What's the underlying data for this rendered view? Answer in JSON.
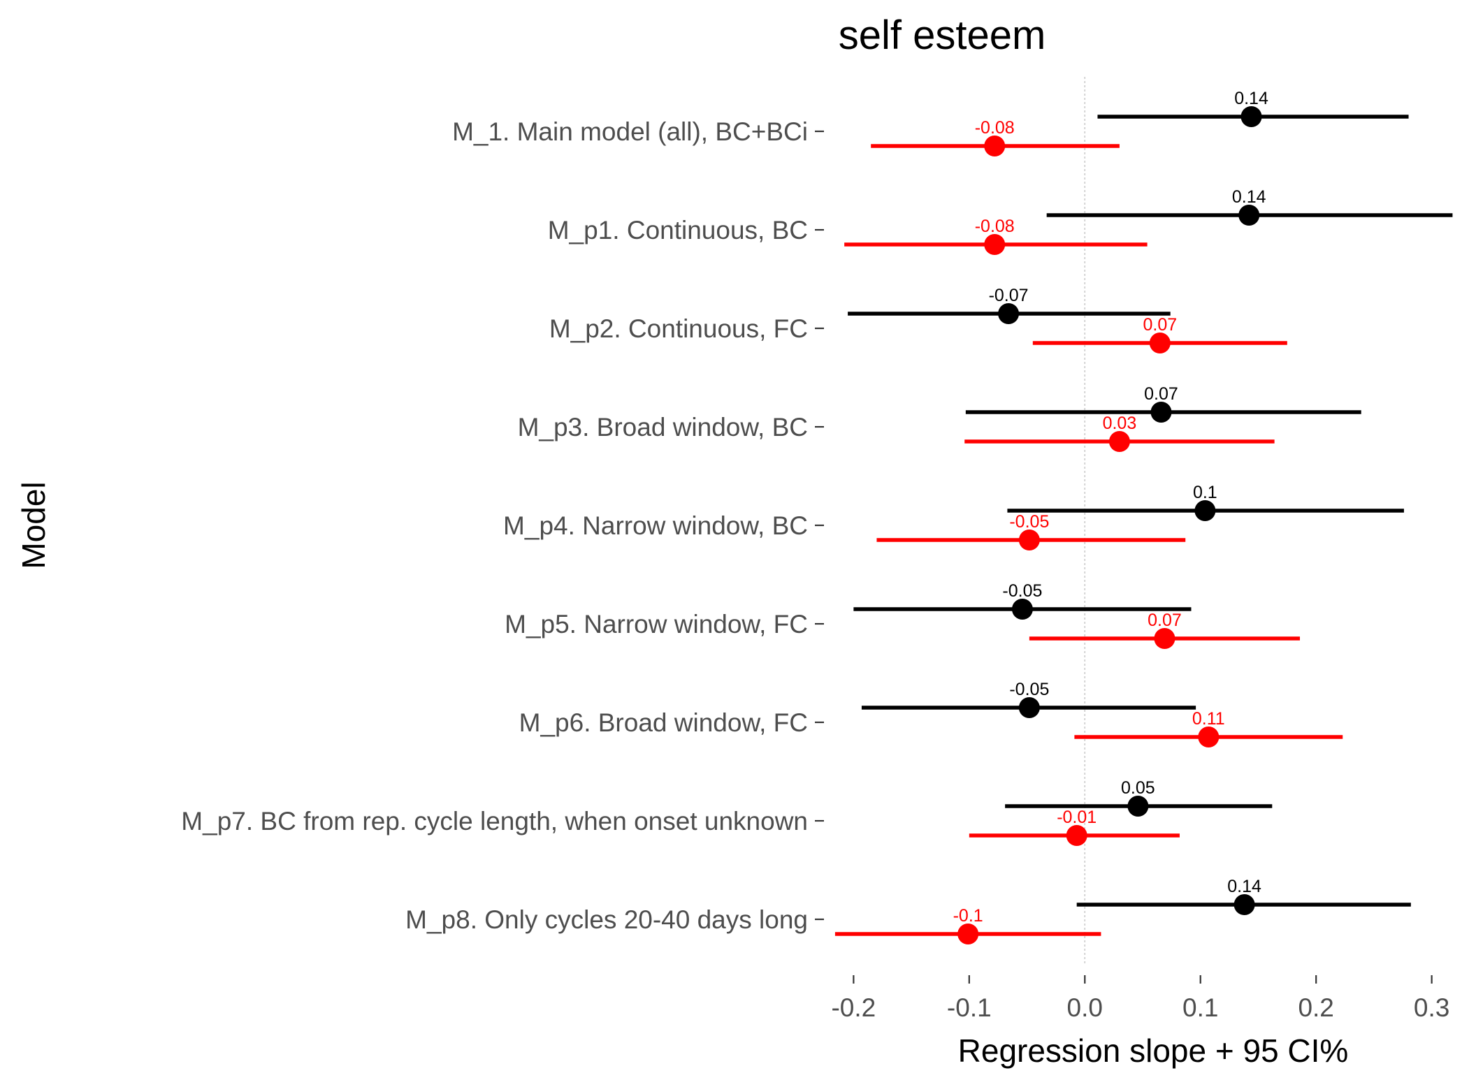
{
  "chart_data": {
    "type": "forest",
    "title": "self esteem",
    "xlabel": "Regression slope + 95 CI%",
    "ylabel": "Model",
    "xlim": [
      -0.225,
      0.325
    ],
    "x_ticks": [
      -0.2,
      -0.1,
      0.0,
      0.1,
      0.2,
      0.3
    ],
    "x_tick_labels": [
      "-0.2",
      "-0.1",
      "0.0",
      "0.1",
      "0.2",
      "0.3"
    ],
    "reference_line": 0,
    "grid": false,
    "categories": [
      "M_1. Main model (all), BC+BCi",
      "M_p1. Continuous, BC",
      "M_p2. Continuous, FC",
      "M_p3. Broad window, BC",
      "M_p4. Narrow window, BC",
      "M_p5. Narrow window, FC",
      "M_p6. Broad window, FC",
      "M_p7. BC from rep. cycle length, when onset unknown",
      "M_p8. Only cycles 20-40 days long"
    ],
    "series": [
      {
        "color": "#000000",
        "estimates": [
          0.144,
          0.142,
          -0.066,
          0.066,
          0.104,
          -0.054,
          -0.048,
          0.046,
          0.138
        ],
        "lower": [
          0.011,
          -0.033,
          -0.205,
          -0.103,
          -0.067,
          -0.2,
          -0.193,
          -0.069,
          -0.007
        ],
        "upper": [
          0.28,
          0.318,
          0.074,
          0.239,
          0.276,
          0.092,
          0.096,
          0.162,
          0.282
        ],
        "labels": [
          "0.14",
          "0.14",
          "-0.07",
          "0.07",
          "0.1",
          "-0.05",
          "-0.05",
          "0.05",
          "0.14"
        ]
      },
      {
        "color": "#ff0000",
        "estimates": [
          -0.078,
          -0.078,
          0.065,
          0.03,
          -0.048,
          0.069,
          0.107,
          -0.007,
          -0.101
        ],
        "lower": [
          -0.185,
          -0.208,
          -0.045,
          -0.104,
          -0.18,
          -0.048,
          -0.009,
          -0.1,
          -0.216
        ],
        "upper": [
          0.03,
          0.054,
          0.175,
          0.164,
          0.087,
          0.186,
          0.223,
          0.082,
          0.014
        ],
        "labels": [
          "-0.08",
          "-0.08",
          "0.07",
          "0.03",
          "-0.05",
          "0.07",
          "0.11",
          "-0.01",
          "-0.1"
        ]
      }
    ]
  }
}
